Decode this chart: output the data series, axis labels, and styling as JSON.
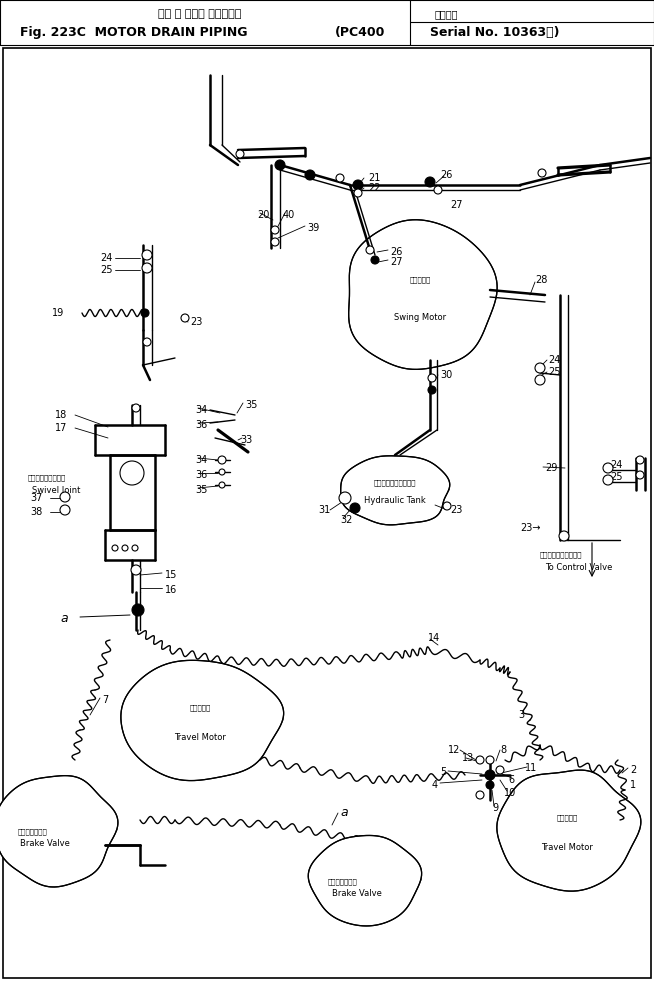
{
  "title_jp": "モー タ ドレン パイビング",
  "title_en": "Fig. 223C  MOTOR DRAIN PIPING",
  "title_model": "(PC400",
  "title_serial_jp": "適用号機",
  "title_serial": "Serial No. 10363～)",
  "bg_color": "#ffffff",
  "fig_width": 6.54,
  "fig_height": 9.82
}
